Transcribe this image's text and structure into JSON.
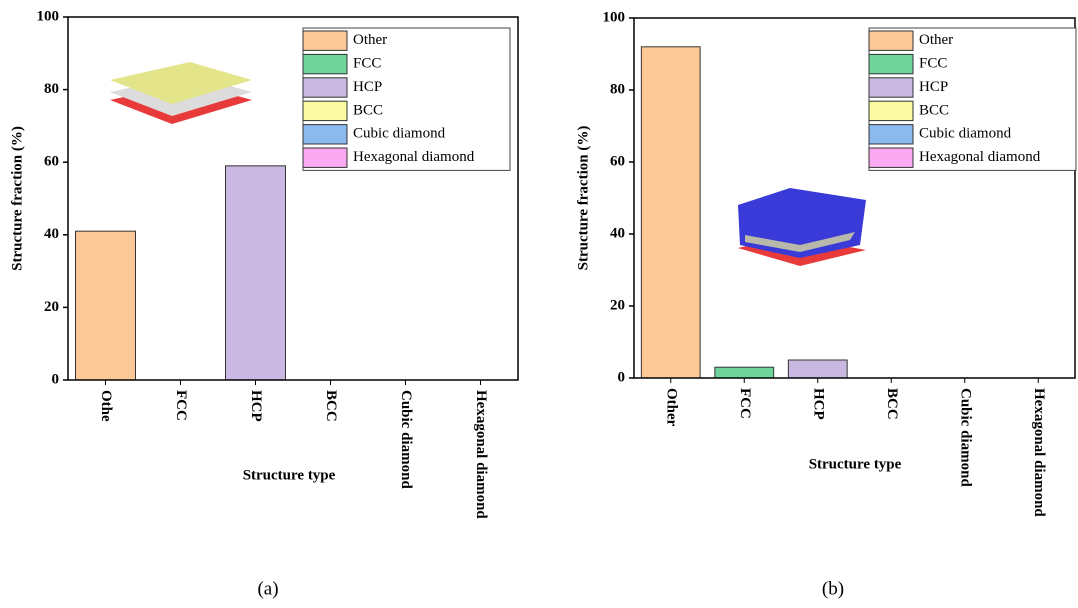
{
  "chart_data": [
    {
      "type": "bar",
      "panel_label": "(a)",
      "y_label": "Structure fraction (%)",
      "x_label": "Structure type",
      "categories": [
        "Othe",
        "FCC",
        "HCP",
        "BCC",
        "Cubic diamond",
        "Hexagonal diamond"
      ],
      "values": [
        41,
        0,
        59,
        0,
        0,
        0
      ],
      "colors": [
        "#fdc897",
        "#6fd49c",
        "#c9b9e2",
        "#fbfaa2",
        "#8cbaee",
        "#fbaaf2"
      ],
      "legend": [
        "Other",
        "FCC",
        "HCP",
        "BCC",
        "Cubic diamond",
        "Hexagonal diamond"
      ],
      "ylim": [
        0,
        100
      ],
      "yticks": [
        0,
        20,
        40,
        60,
        80,
        100
      ]
    },
    {
      "type": "bar",
      "panel_label": "(b)",
      "y_label": "Structure fraction (%)",
      "x_label": "Structure type",
      "categories": [
        "Other",
        "FCC",
        "HCP",
        "BCC",
        "Cubic diamond",
        "Hexagonal diamond"
      ],
      "values": [
        92,
        3,
        5,
        0,
        0,
        0
      ],
      "colors": [
        "#fdc897",
        "#6fd49c",
        "#c9b9e2",
        "#fbfaa2",
        "#8cbaee",
        "#fbaaf2"
      ],
      "legend": [
        "Other",
        "FCC",
        "HCP",
        "BCC",
        "Cubic diamond",
        "Hexagonal diamond"
      ],
      "ylim": [
        0,
        100
      ],
      "yticks": [
        0,
        20,
        40,
        60,
        80,
        100
      ]
    }
  ]
}
